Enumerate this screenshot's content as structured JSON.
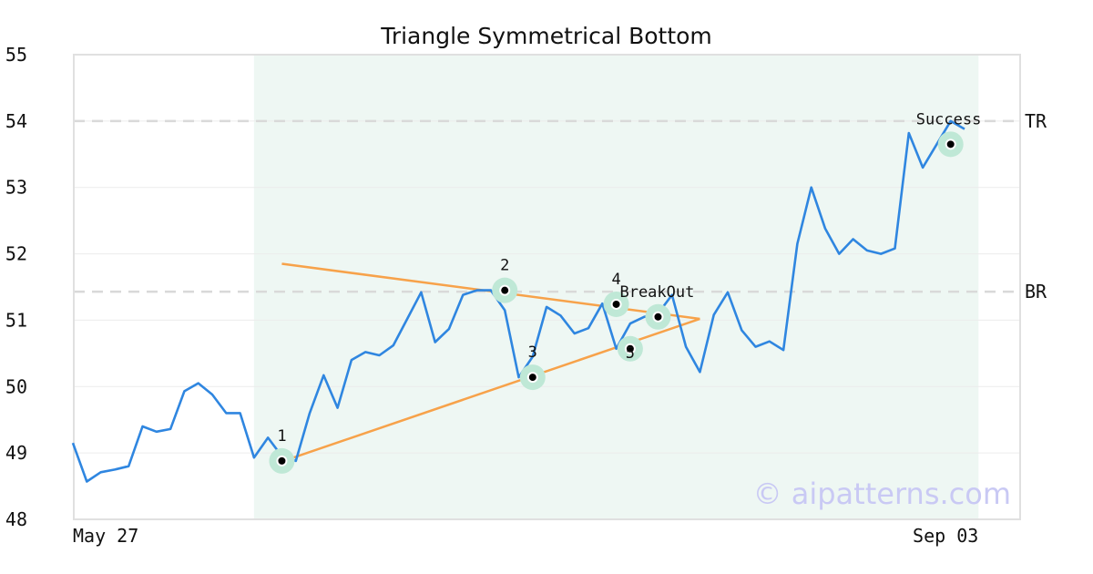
{
  "chart_data": {
    "type": "line",
    "title": "Triangle Symmetrical Bottom",
    "ylim": [
      48,
      55
    ],
    "yticks": [
      "48",
      "49",
      "50",
      "51",
      "52",
      "53",
      "54",
      "55"
    ],
    "x_tick_labels": [
      {
        "index": 0,
        "label": "May 27"
      },
      {
        "index": 65,
        "label": "Sep 03"
      }
    ],
    "grid": "horizontal",
    "highlight_range": [
      13,
      65
    ],
    "series": [
      {
        "color": "#2f86e0",
        "values": [
          49.15,
          48.57,
          48.71,
          48.75,
          48.8,
          49.4,
          49.32,
          49.36,
          49.93,
          50.05,
          49.88,
          49.6,
          49.6,
          48.93,
          49.23,
          48.95,
          48.88,
          49.6,
          50.17,
          49.68,
          50.4,
          50.52,
          50.47,
          50.62,
          51.02,
          51.42,
          50.67,
          50.87,
          51.38,
          51.45,
          51.45,
          51.15,
          50.14,
          50.45,
          51.2,
          51.07,
          50.8,
          50.88,
          51.25,
          50.57,
          50.95,
          51.05,
          51.1,
          51.38,
          50.6,
          50.22,
          51.08,
          51.42,
          50.85,
          50.6,
          50.68,
          50.55,
          52.15,
          53.0,
          52.38,
          52.0,
          52.22,
          52.05,
          52.0,
          52.08,
          53.82,
          53.3,
          53.65,
          54.0,
          53.88
        ]
      }
    ],
    "trendlines": [
      {
        "color": "#f7a24a",
        "from": [
          15,
          51.85
        ],
        "to": [
          45,
          51.02
        ]
      },
      {
        "color": "#f7a24a",
        "from": [
          15,
          48.87
        ],
        "to": [
          45,
          51.02
        ]
      }
    ],
    "reference_lines": [
      {
        "label": "TR",
        "value": 54.0
      },
      {
        "label": "BR",
        "value": 51.43
      }
    ],
    "points": [
      {
        "label": "1",
        "x": 15,
        "y": 48.88
      },
      {
        "label": "2",
        "x": 31,
        "y": 51.45
      },
      {
        "label": "3",
        "x": 33,
        "y": 50.14
      },
      {
        "label": "4",
        "x": 39,
        "y": 51.24
      },
      {
        "label": "5",
        "x": 40,
        "y": 50.57
      },
      {
        "label": "BreakOut",
        "x": 42,
        "y": 51.05
      },
      {
        "label": "Success",
        "x": 63,
        "y": 53.65
      }
    ],
    "colors": {
      "line": "#2f86e0",
      "trendline": "#f7a24a",
      "highlight_fill": "#eef7f3",
      "marker_halo": "#bfe8d6",
      "reference": "#d9d9d9"
    }
  },
  "watermark": "© aipatterns.com"
}
